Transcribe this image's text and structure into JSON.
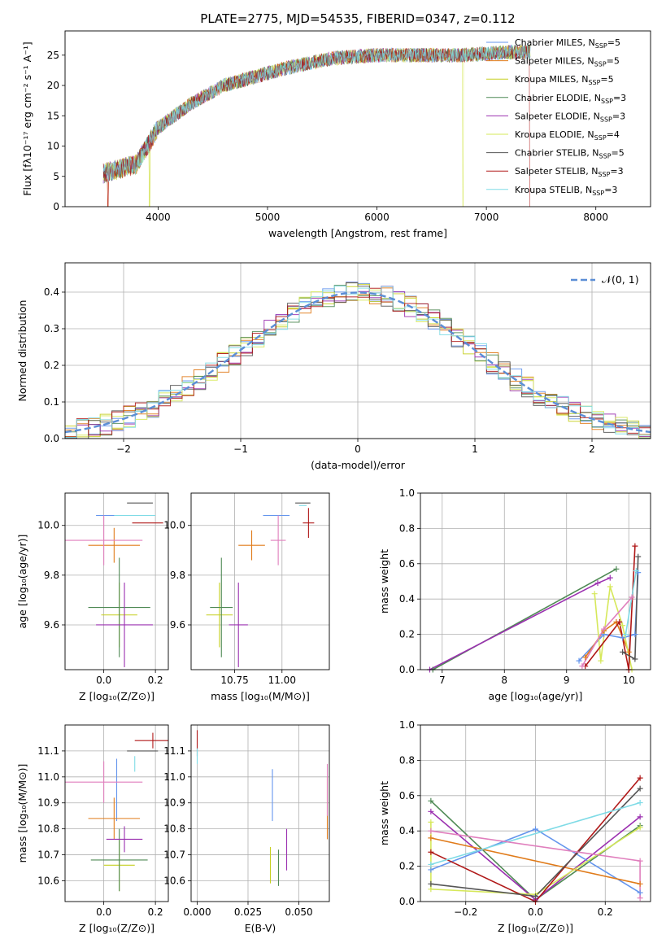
{
  "figure": {
    "title": "PLATE=2775, MJD=54535, FIBERID=0347, z=0.112"
  },
  "colors": {
    "blue": "#6495ed",
    "orange": "#e07b1a",
    "yellow": "#c5cf20",
    "green": "#4f8a55",
    "purple": "#9b30b0",
    "lime": "#d6e85a",
    "darkgray": "#555555",
    "red": "#b01818",
    "cyan": "#7fdbe6",
    "pink": "#e07fbd"
  },
  "chart_data": [
    {
      "id": "spectrum",
      "type": "line",
      "xlabel": "wavelength [Angstrom, rest frame]",
      "ylabel": "Flux [fλ10⁻¹⁷ erg cm⁻² s⁻¹ A⁻¹]",
      "xlim": [
        3150,
        8500
      ],
      "ylim": [
        0,
        29
      ],
      "xticks": [
        "4000",
        "5000",
        "6000",
        "7000",
        "8000"
      ],
      "yticks": [
        "0",
        "5",
        "10",
        "15",
        "20",
        "25"
      ],
      "grid": false,
      "legend_position": "top-right",
      "continuum": [
        [
          3500,
          5.5
        ],
        [
          3800,
          7
        ],
        [
          4000,
          13
        ],
        [
          4300,
          17
        ],
        [
          4600,
          20
        ],
        [
          4900,
          21.5
        ],
        [
          5200,
          23
        ],
        [
          5600,
          24.5
        ],
        [
          6000,
          25
        ],
        [
          6400,
          25
        ],
        [
          6800,
          25
        ],
        [
          7200,
          25.5
        ],
        [
          7400,
          25.5
        ]
      ],
      "series": [
        {
          "name": "Chabrier MILES, N$_{SSP}$=5",
          "color": "#6495ed"
        },
        {
          "name": "Salpeter MILES, N$_{SSP}$=5",
          "color": "#e07b1a"
        },
        {
          "name": "Kroupa MILES, N$_{SSP}$=5",
          "color": "#c5cf20"
        },
        {
          "name": "Chabrier ELODIE, N$_{SSP}$=3",
          "color": "#4f8a55"
        },
        {
          "name": "Salpeter ELODIE, N$_{SSP}$=3",
          "color": "#9b30b0"
        },
        {
          "name": "Kroupa ELODIE, N$_{SSP}$=4",
          "color": "#d6e85a"
        },
        {
          "name": "Chabrier STELIB, N$_{SSP}$=5",
          "color": "#555555"
        },
        {
          "name": "Salpeter STELIB, N$_{SSP}$=3",
          "color": "#b01818"
        },
        {
          "name": "Kroupa STELIB, N$_{SSP}$=3",
          "color": "#7fdbe6"
        }
      ]
    },
    {
      "id": "residuals",
      "type": "line",
      "xlabel": "(data-model)/error",
      "ylabel": "Normed distribution",
      "xlim": [
        -2.5,
        2.5
      ],
      "ylim": [
        0,
        0.48
      ],
      "xticks": [
        "−2",
        "−1",
        "0",
        "1",
        "2"
      ],
      "yticks": [
        "0.0",
        "0.1",
        "0.2",
        "0.3",
        "0.4"
      ],
      "grid": true,
      "legend_position": "top-right",
      "legend_label": "𝒩(0, 1)",
      "bin_width": 0.1,
      "histogram_colors": [
        "#6495ed",
        "#e07b1a",
        "#c5cf20",
        "#4f8a55",
        "#9b30b0",
        "#d6e85a",
        "#555555",
        "#b01818",
        "#7fdbe6"
      ]
    },
    {
      "id": "age-vs-Z",
      "type": "scatter",
      "xlabel": "Z [log₁₀(Z/Z⊙)]",
      "ylabel": "age  [log₁₀(age/yr)]",
      "xlim": [
        -0.15,
        0.25
      ],
      "ylim": [
        9.42,
        10.13
      ],
      "xticks": [
        "0.0",
        "0.2"
      ],
      "yticks": [
        "9.6",
        "9.8",
        "10.0"
      ],
      "grid": true,
      "points": [
        {
          "x": 0.05,
          "y": 10.04,
          "xerr": 0.08,
          "yerr": 0.0,
          "color": "#6495ed"
        },
        {
          "x": 0.04,
          "y": 9.92,
          "xerr": 0.1,
          "yerr": 0.07,
          "color": "#e07b1a"
        },
        {
          "x": 0.06,
          "y": 9.64,
          "xerr": 0.07,
          "yerr": 0.13,
          "color": "#c5cf20"
        },
        {
          "x": 0.06,
          "y": 9.67,
          "xerr": 0.12,
          "yerr": 0.2,
          "color": "#4f8a55"
        },
        {
          "x": 0.08,
          "y": 9.6,
          "xerr": 0.11,
          "yerr": 0.17,
          "color": "#9b30b0"
        },
        {
          "x": 0.0,
          "y": 9.94,
          "xerr": 0.15,
          "yerr": 0.1,
          "color": "#e07fbd"
        },
        {
          "x": 0.14,
          "y": 10.09,
          "xerr": 0.05,
          "yerr": 0.0,
          "color": "#555555"
        },
        {
          "x": 0.12,
          "y": 10.04,
          "xerr": 0.08,
          "yerr": 0.0,
          "color": "#7fdbe6"
        },
        {
          "x": 0.17,
          "y": 10.01,
          "xerr": 0.06,
          "yerr": 0.0,
          "color": "#b01818"
        }
      ]
    },
    {
      "id": "age-vs-mass",
      "type": "scatter",
      "xlabel": "mass [log₁₀(M/M⊙)]",
      "ylabel": "",
      "xlim": [
        10.52,
        11.25
      ],
      "ylim": [
        9.42,
        10.13
      ],
      "xticks": [
        "10.75",
        "11.00"
      ],
      "yticks": [
        "9.6",
        "9.8",
        "10.0"
      ],
      "grid": true,
      "points": [
        {
          "x": 10.97,
          "y": 10.04,
          "xerr": 0.07,
          "yerr": 0.0,
          "color": "#6495ed"
        },
        {
          "x": 10.84,
          "y": 9.92,
          "xerr": 0.07,
          "yerr": 0.06,
          "color": "#e07b1a"
        },
        {
          "x": 10.67,
          "y": 9.64,
          "xerr": 0.07,
          "yerr": 0.13,
          "color": "#c5cf20"
        },
        {
          "x": 10.68,
          "y": 9.67,
          "xerr": 0.06,
          "yerr": 0.2,
          "color": "#4f8a55"
        },
        {
          "x": 10.77,
          "y": 9.6,
          "xerr": 0.05,
          "yerr": 0.17,
          "color": "#9b30b0"
        },
        {
          "x": 10.98,
          "y": 9.94,
          "xerr": 0.04,
          "yerr": 0.1,
          "color": "#e07fbd"
        },
        {
          "x": 11.11,
          "y": 10.09,
          "xerr": 0.04,
          "yerr": 0.0,
          "color": "#555555"
        },
        {
          "x": 11.11,
          "y": 10.08,
          "xerr": 0.02,
          "yerr": 0.0,
          "color": "#7fdbe6"
        },
        {
          "x": 11.14,
          "y": 10.01,
          "xerr": 0.03,
          "yerr": 0.06,
          "color": "#b01818"
        }
      ]
    },
    {
      "id": "weight-vs-age",
      "type": "line",
      "xlabel": "age  [log₁₀(age/yr)]",
      "ylabel": "mass weight",
      "xlim": [
        6.65,
        10.35
      ],
      "ylim": [
        0,
        1
      ],
      "xticks": [
        "7",
        "8",
        "9",
        "10"
      ],
      "yticks": [
        "0.0",
        "0.2",
        "0.4",
        "0.6",
        "0.8",
        "1.0"
      ],
      "grid": true,
      "series": [
        {
          "color": "#4f8a55",
          "points": [
            [
              6.85,
              0.0
            ],
            [
              9.8,
              0.57
            ]
          ]
        },
        {
          "color": "#9b30b0",
          "points": [
            [
              6.8,
              0.0
            ],
            [
              9.5,
              0.49
            ],
            [
              9.7,
              0.52
            ]
          ]
        },
        {
          "color": "#6495ed",
          "points": [
            [
              9.2,
              0.05
            ],
            [
              9.6,
              0.2
            ],
            [
              9.9,
              0.18
            ],
            [
              10.1,
              0.2
            ],
            [
              10.15,
              0.55
            ]
          ]
        },
        {
          "color": "#e07b1a",
          "points": [
            [
              9.3,
              0.07
            ],
            [
              9.6,
              0.22
            ],
            [
              9.8,
              0.27
            ],
            [
              10.0,
              0.1
            ]
          ]
        },
        {
          "color": "#d6e85a",
          "points": [
            [
              9.45,
              0.43
            ],
            [
              9.55,
              0.05
            ],
            [
              9.7,
              0.47
            ],
            [
              9.9,
              0.25
            ],
            [
              10.05,
              0.0
            ]
          ]
        },
        {
          "color": "#b01818",
          "points": [
            [
              9.3,
              0.02
            ],
            [
              9.85,
              0.27
            ],
            [
              10.0,
              0.0
            ],
            [
              10.1,
              0.7
            ]
          ]
        },
        {
          "color": "#555555",
          "points": [
            [
              9.9,
              0.1
            ],
            [
              10.1,
              0.06
            ],
            [
              10.15,
              0.64
            ]
          ]
        },
        {
          "color": "#7fdbe6",
          "points": [
            [
              9.95,
              0.2
            ],
            [
              10.12,
              0.56
            ]
          ]
        },
        {
          "color": "#e07fbd",
          "points": [
            [
              9.25,
              0.02
            ],
            [
              9.6,
              0.23
            ],
            [
              10.05,
              0.41
            ]
          ]
        }
      ]
    },
    {
      "id": "mass-vs-Z",
      "type": "scatter",
      "xlabel": "Z [log₁₀(Z/Z⊙)]",
      "ylabel": "mass [log₁₀(M/M⊙)]",
      "xlim": [
        -0.15,
        0.25
      ],
      "ylim": [
        10.52,
        11.2
      ],
      "xticks": [
        "0.0",
        "0.2"
      ],
      "yticks": [
        "10.6",
        "10.7",
        "10.8",
        "10.9",
        "11.0",
        "11.1"
      ],
      "grid": true,
      "points": [
        {
          "x": 0.05,
          "y": 10.95,
          "xerr": 0.0,
          "yerr": 0.12,
          "color": "#6495ed"
        },
        {
          "x": 0.04,
          "y": 10.84,
          "xerr": 0.1,
          "yerr": 0.08,
          "color": "#e07b1a"
        },
        {
          "x": 0.06,
          "y": 10.66,
          "xerr": 0.06,
          "yerr": 0.1,
          "color": "#c5cf20"
        },
        {
          "x": 0.06,
          "y": 10.68,
          "xerr": 0.11,
          "yerr": 0.12,
          "color": "#4f8a55"
        },
        {
          "x": 0.08,
          "y": 10.76,
          "xerr": 0.07,
          "yerr": 0.05,
          "color": "#9b30b0"
        },
        {
          "x": 0.0,
          "y": 10.98,
          "xerr": 0.15,
          "yerr": 0.08,
          "color": "#e07fbd"
        },
        {
          "x": 0.15,
          "y": 11.1,
          "xerr": 0.06,
          "yerr": 0.0,
          "color": "#555555"
        },
        {
          "x": 0.12,
          "y": 11.05,
          "xerr": 0.0,
          "yerr": 0.03,
          "color": "#7fdbe6"
        },
        {
          "x": 0.19,
          "y": 11.14,
          "xerr": 0.07,
          "yerr": 0.03,
          "color": "#b01818"
        }
      ]
    },
    {
      "id": "mass-vs-EBV",
      "type": "scatter",
      "xlabel": "E(B-V)",
      "ylabel": "",
      "xlim": [
        -0.003,
        0.065
      ],
      "ylim": [
        10.52,
        11.2
      ],
      "xticks": [
        "0.000",
        "0.025",
        "0.050"
      ],
      "yticks": [
        "10.6",
        "10.7",
        "10.8",
        "10.9",
        "11.0",
        "11.1"
      ],
      "grid": true,
      "points": [
        {
          "x": 0.0,
          "y": 11.13,
          "xerr": 0.0,
          "yerr": 0.05,
          "color": "#b01818"
        },
        {
          "x": 0.0,
          "y": 11.08,
          "xerr": 0.0,
          "yerr": 0.03,
          "color": "#7fdbe6"
        },
        {
          "x": 0.037,
          "y": 10.93,
          "xerr": 0.0,
          "yerr": 0.1,
          "color": "#6495ed"
        },
        {
          "x": 0.064,
          "y": 10.88,
          "xerr": 0.0,
          "yerr": 0.12,
          "color": "#e07b1a"
        },
        {
          "x": 0.064,
          "y": 10.95,
          "xerr": 0.0,
          "yerr": 0.1,
          "color": "#e07fbd"
        },
        {
          "x": 0.044,
          "y": 10.72,
          "xerr": 0.0,
          "yerr": 0.08,
          "color": "#9b30b0"
        },
        {
          "x": 0.036,
          "y": 10.66,
          "xerr": 0.0,
          "yerr": 0.07,
          "color": "#c5cf20"
        },
        {
          "x": 0.04,
          "y": 10.65,
          "xerr": 0.0,
          "yerr": 0.07,
          "color": "#4f8a55"
        }
      ]
    },
    {
      "id": "weight-vs-Z",
      "type": "line",
      "xlabel": "Z [log₁₀(Z/Z⊙)]",
      "ylabel": "mass weight",
      "xlim": [
        -0.33,
        0.33
      ],
      "ylim": [
        0,
        1
      ],
      "xticks": [
        "−0.2",
        "0.0",
        "0.2"
      ],
      "yticks": [
        "0.0",
        "0.2",
        "0.4",
        "0.6",
        "0.8",
        "1.0"
      ],
      "grid": true,
      "series": [
        {
          "color": "#4f8a55",
          "points": [
            [
              -0.3,
              0.57
            ],
            [
              0.0,
              0.01
            ],
            [
              0.3,
              0.43
            ]
          ]
        },
        {
          "color": "#9b30b0",
          "points": [
            [
              -0.3,
              0.51
            ],
            [
              0.0,
              0.01
            ],
            [
              0.3,
              0.48
            ]
          ]
        },
        {
          "color": "#6495ed",
          "points": [
            [
              -0.3,
              0.18
            ],
            [
              0.0,
              0.41
            ],
            [
              0.3,
              0.05
            ]
          ]
        },
        {
          "color": "#e07b1a",
          "points": [
            [
              -0.3,
              0.36
            ],
            [
              0.3,
              0.1
            ]
          ]
        },
        {
          "color": "#d6e85a",
          "points": [
            [
              -0.3,
              0.45
            ],
            [
              -0.3,
              0.07
            ],
            [
              0.0,
              0.04
            ],
            [
              0.3,
              0.42
            ]
          ]
        },
        {
          "color": "#b01818",
          "points": [
            [
              -0.3,
              0.28
            ],
            [
              0.0,
              0.0
            ],
            [
              0.3,
              0.7
            ]
          ]
        },
        {
          "color": "#555555",
          "points": [
            [
              -0.3,
              0.1
            ],
            [
              0.0,
              0.03
            ],
            [
              0.3,
              0.64
            ]
          ]
        },
        {
          "color": "#7fdbe6",
          "points": [
            [
              -0.3,
              0.21
            ],
            [
              0.3,
              0.56
            ]
          ]
        },
        {
          "color": "#e07fbd",
          "points": [
            [
              -0.3,
              0.4
            ],
            [
              0.3,
              0.23
            ],
            [
              0.3,
              0.02
            ]
          ]
        }
      ]
    }
  ]
}
